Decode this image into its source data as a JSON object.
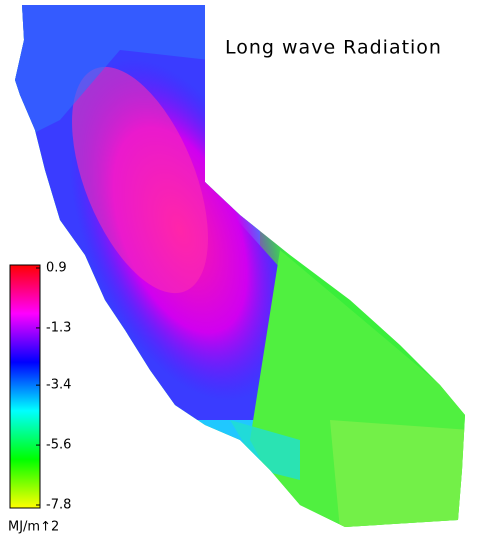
{
  "title": "Long wave Radiation",
  "colorbar": {
    "ticks": [
      0.9,
      -1.3,
      -3.4,
      -5.6,
      -7.8
    ],
    "lim": [
      -7.8,
      0.9
    ],
    "unit": "MJ/m↑2",
    "colors": [
      "#ffff00",
      "#00ff00",
      "#00ffff",
      "#0000ff",
      "#ff00ff",
      "#ff0000"
    ]
  }
}
